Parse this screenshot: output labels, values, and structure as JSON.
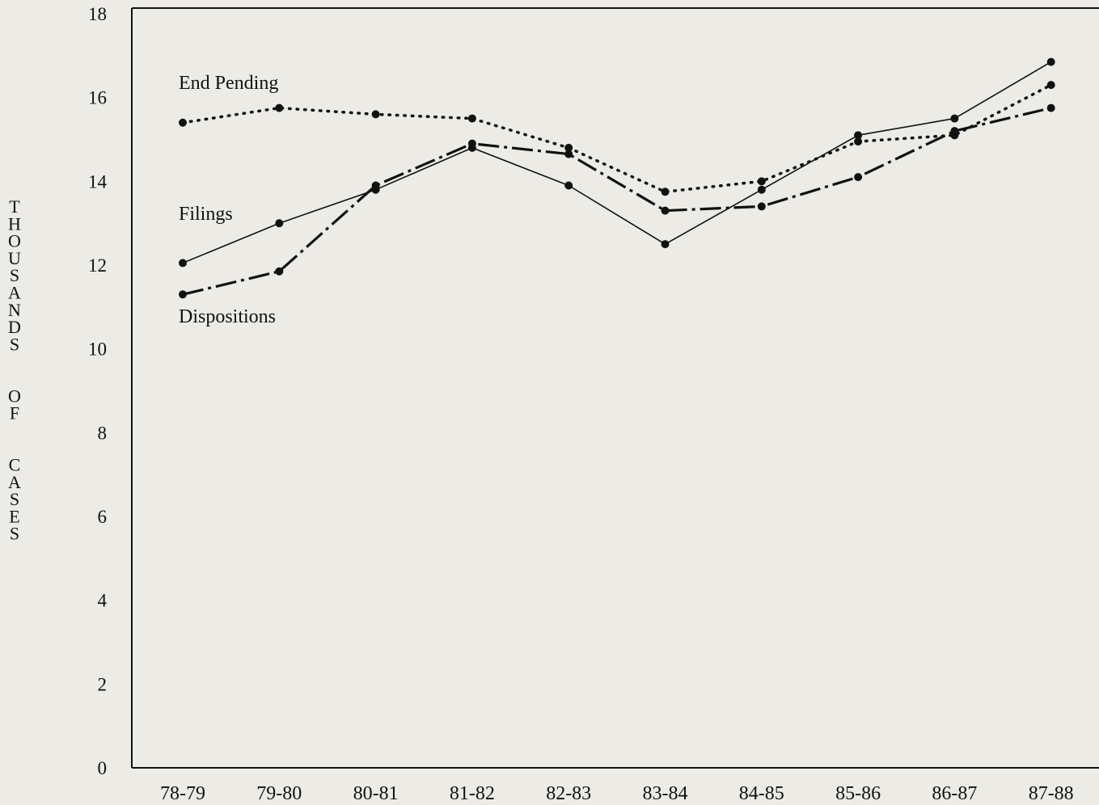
{
  "chart_data": {
    "type": "line",
    "title": "",
    "xlabel": "",
    "ylabel": "THOUSANDS OF CASES",
    "categories": [
      "78-79",
      "79-80",
      "80-81",
      "81-82",
      "82-83",
      "83-84",
      "84-85",
      "85-86",
      "86-87",
      "87-88"
    ],
    "ylim": [
      0,
      18
    ],
    "yticks": [
      0,
      2,
      4,
      6,
      8,
      10,
      12,
      14,
      16,
      18
    ],
    "grid": false,
    "legend": "inline labels",
    "series": [
      {
        "name": "End Pending",
        "style": "dotted",
        "values": [
          15.4,
          15.75,
          15.6,
          15.5,
          14.8,
          13.75,
          14.0,
          14.95,
          15.1,
          16.3
        ]
      },
      {
        "name": "Filings",
        "style": "solid",
        "values": [
          12.05,
          13.0,
          13.8,
          14.8,
          13.9,
          12.5,
          13.8,
          15.1,
          15.5,
          16.85
        ]
      },
      {
        "name": "Dispositions",
        "style": "dash-dot",
        "values": [
          11.3,
          11.85,
          13.9,
          14.9,
          14.65,
          13.3,
          13.4,
          14.1,
          15.2,
          15.75
        ]
      }
    ],
    "colors": {
      "line": "#111111",
      "background": "#ecebe6"
    }
  }
}
